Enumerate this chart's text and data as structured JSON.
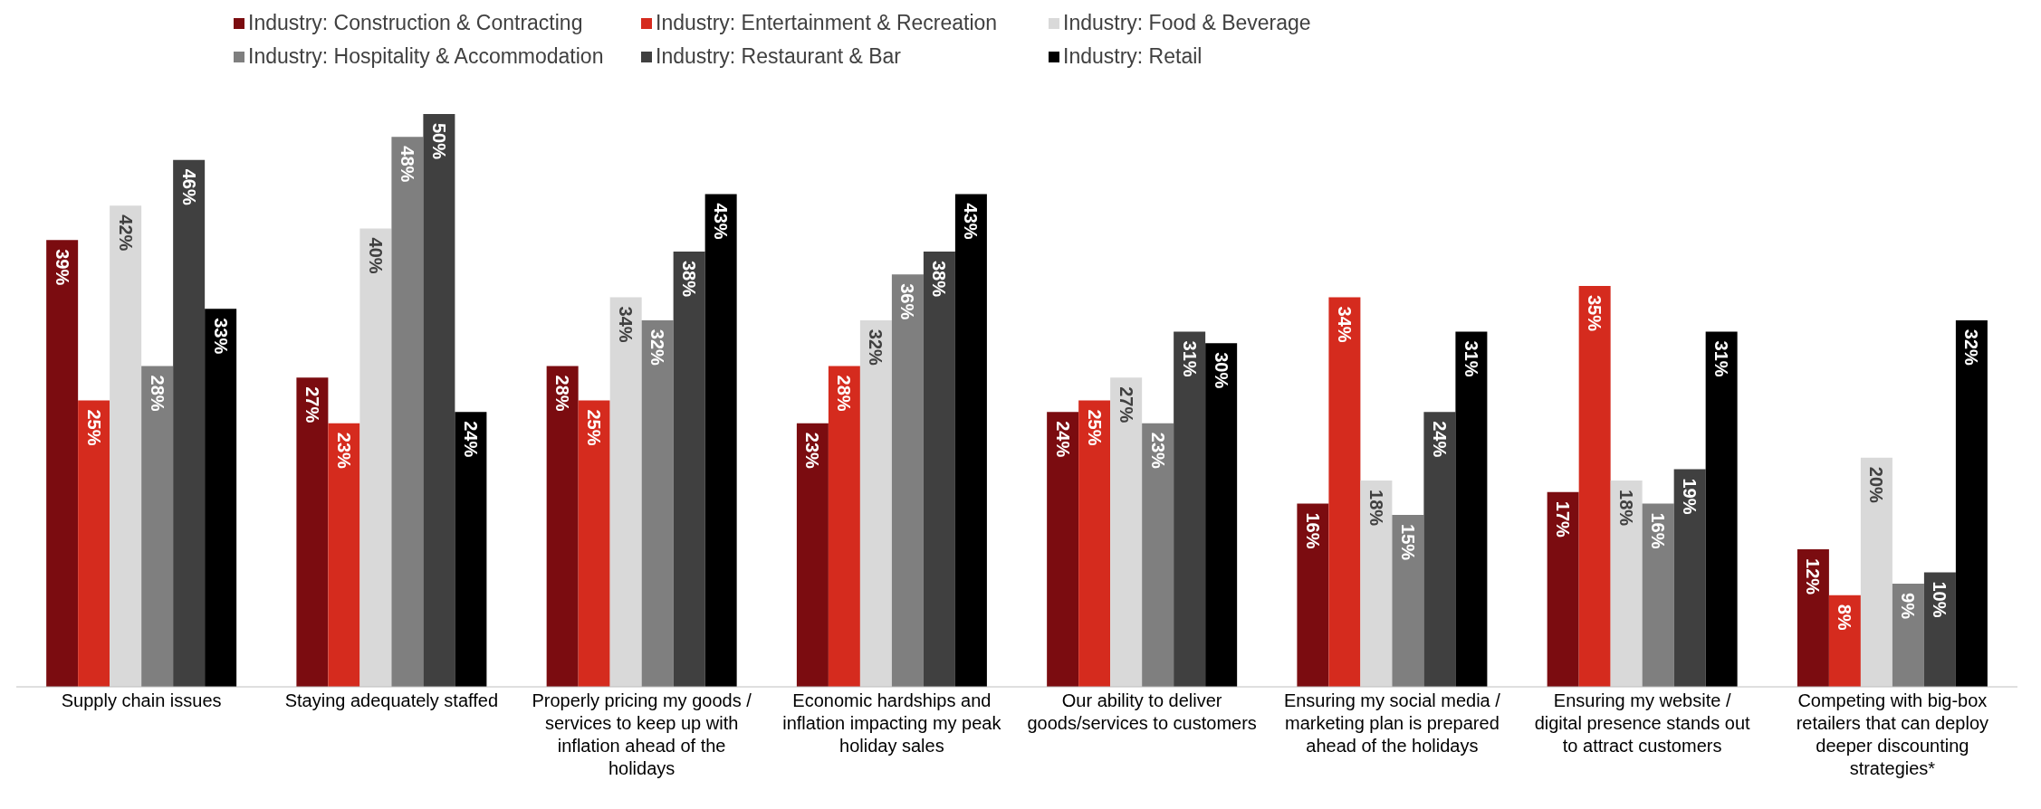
{
  "chart_data": {
    "type": "bar",
    "categories": [
      "Supply chain issues",
      "Staying adequately staffed",
      "Properly pricing my goods / services to keep up with inflation ahead of the holidays",
      "Economic hardships and inflation impacting my peak holiday sales",
      "Our ability to deliver goods/services to customers",
      "Ensuring my social media / marketing plan is prepared ahead of the holidays",
      "Ensuring my website / digital presence stands out to attract customers",
      "Competing with big-box retailers that can deploy deeper discounting strategies*"
    ],
    "series": [
      {
        "name": "Industry: Construction & Contracting",
        "color": "#7b0c10",
        "values": [
          39,
          27,
          28,
          23,
          24,
          16,
          17,
          12
        ],
        "value_labels": [
          "39%",
          "27%",
          "28%",
          "23%",
          "24%",
          "16%",
          "17%",
          "12%"
        ]
      },
      {
        "name": "Industry: Entertainment & Recreation",
        "color": "#d52b1e",
        "values": [
          25,
          23,
          25,
          28,
          25,
          34,
          35,
          8
        ],
        "value_labels": [
          "25%",
          "23%",
          "25%",
          "28%",
          "25%",
          "34%",
          "35%",
          "8%"
        ]
      },
      {
        "name": "Industry: Food & Beverage",
        "color": "#d9d9d9",
        "values": [
          42,
          40,
          34,
          32,
          27,
          18,
          18,
          20
        ],
        "value_labels": [
          "42%",
          "40%",
          "34%",
          "32%",
          "27%",
          "18%",
          "18%",
          "20%"
        ]
      },
      {
        "name": "Industry: Hospitality & Accommodation",
        "color": "#7f7f7f",
        "values": [
          28,
          48,
          32,
          36,
          23,
          15,
          16,
          9
        ],
        "value_labels": [
          "28%",
          "48%",
          "32%",
          "36%",
          "23%",
          "15%",
          "16%",
          "9%"
        ]
      },
      {
        "name": "Industry: Restaurant & Bar",
        "color": "#404040",
        "values": [
          46,
          50,
          38,
          38,
          31,
          24,
          19,
          10
        ],
        "value_labels": [
          "46%",
          "50%",
          "38%",
          "38%",
          "31%",
          "24%",
          "19%",
          "10%"
        ]
      },
      {
        "name": "Industry: Retail",
        "color": "#000000",
        "values": [
          33,
          24,
          43,
          43,
          30,
          31,
          31,
          32
        ],
        "value_labels": [
          "33%",
          "24%",
          "43%",
          "43%",
          "30%",
          "31%",
          "31%",
          "32%"
        ]
      }
    ],
    "legend": "top",
    "grid": false
  }
}
